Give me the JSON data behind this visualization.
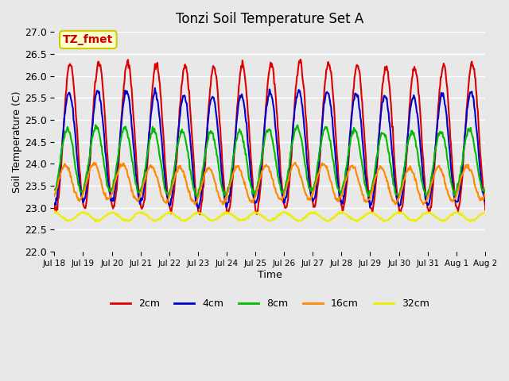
{
  "title": "Tonzi Soil Temperature Set A",
  "xlabel": "Time",
  "ylabel": "Soil Temperature (C)",
  "annotation": "TZ_fmet",
  "annotation_color": "#cc0000",
  "annotation_bg": "#ffffcc",
  "annotation_border": "#cccc00",
  "ylim": [
    22.0,
    27.0
  ],
  "yticks": [
    22.0,
    22.5,
    23.0,
    23.5,
    24.0,
    24.5,
    25.0,
    25.5,
    26.0,
    26.5,
    27.0
  ],
  "colors": {
    "2cm": "#dd0000",
    "4cm": "#0000cc",
    "8cm": "#00bb00",
    "16cm": "#ff8800",
    "32cm": "#eeee00"
  },
  "line_widths": {
    "2cm": 1.5,
    "4cm": 1.5,
    "8cm": 1.5,
    "16cm": 1.5,
    "32cm": 1.5
  },
  "background_color": "#e8e8e8",
  "plot_bg_color": "#e8e8e8",
  "grid_color": "#ffffff",
  "x_tick_labels": [
    "Jul 18",
    "Jul 19",
    "Jul 20",
    "Jul 21",
    "Jul 22",
    "Jul 23",
    "Jul 24",
    "Jul 25",
    "Jul 26",
    "Jul 27",
    "Jul 28",
    "Jul 29",
    "Jul 30",
    "Jul 31",
    "Aug 1",
    "Aug 2"
  ],
  "legend_labels": [
    "2cm",
    "4cm",
    "8cm",
    "16cm",
    "32cm"
  ]
}
